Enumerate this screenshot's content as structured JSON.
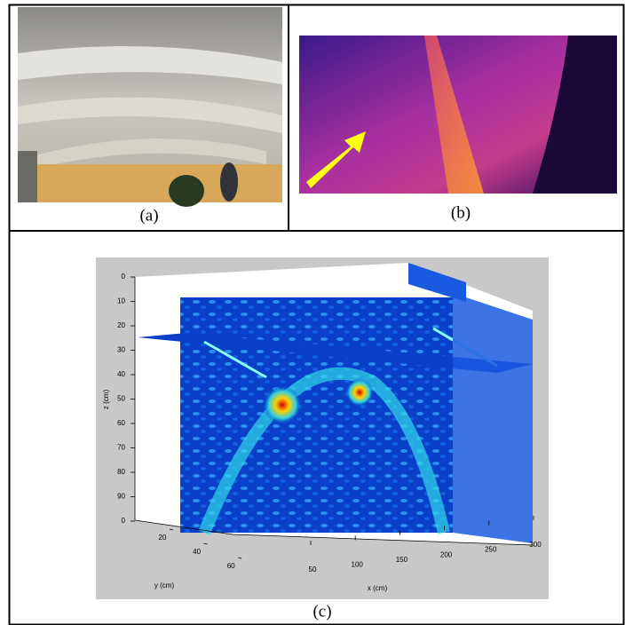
{
  "panels": [
    {
      "label": "(a)"
    },
    {
      "label": "(b)"
    },
    {
      "label": "(c)",
      "plot": {
        "z_label": "z (cm)",
        "z_ticks": [
          0,
          10,
          20,
          30,
          40,
          50,
          60,
          70,
          80,
          90,
          {
            "value": 100,
            "label": "0"
          }
        ],
        "y_label": "y (cm)",
        "y_ticks": [
          20,
          40,
          60
        ],
        "x_label": "x (cm)",
        "x_ticks": [
          50,
          100,
          150,
          200,
          250,
          300
        ]
      }
    }
  ]
}
